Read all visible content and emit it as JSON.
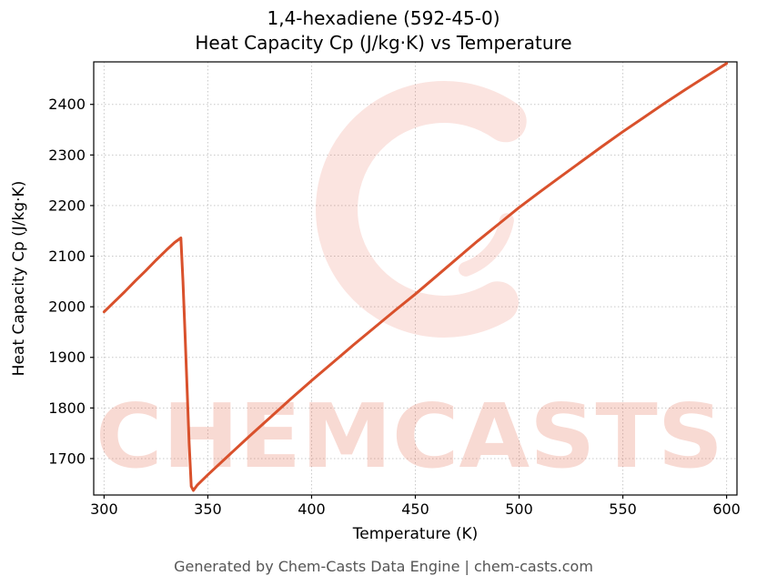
{
  "title": {
    "line1": "1,4-hexadiene (592-45-0)",
    "line2": "Heat Capacity Cp (J/kg·K) vs Temperature"
  },
  "watermark": {
    "text": "CHEMCASTS",
    "color": "#e4593c"
  },
  "footer": "Generated by Chem-Casts Data Engine | chem-casts.com",
  "chart_data": {
    "type": "line",
    "title": "1,4-hexadiene (592-45-0) Heat Capacity Cp (J/kg·K) vs Temperature",
    "xlabel": "Temperature (K)",
    "ylabel": "Heat Capacity Cp (J/kg·K)",
    "xlim": [
      295,
      605
    ],
    "ylim": [
      1628,
      2484
    ],
    "x_ticks": [
      300,
      350,
      400,
      450,
      500,
      550,
      600
    ],
    "y_ticks": [
      1700,
      1800,
      1900,
      2000,
      2100,
      2200,
      2300,
      2400
    ],
    "grid": true,
    "legend_position": "none",
    "line_color": "#d9512c",
    "series": [
      {
        "name": "Heat Capacity Cp",
        "x": [
          300,
          305,
          310,
          315,
          320,
          325,
          330,
          334,
          337,
          338,
          339,
          340,
          341,
          342,
          343,
          345,
          350,
          360,
          370,
          380,
          390,
          400,
          410,
          420,
          430,
          440,
          450,
          460,
          470,
          480,
          490,
          500,
          510,
          520,
          530,
          540,
          550,
          560,
          570,
          580,
          590,
          600
        ],
        "y": [
          1990,
          2010,
          2030,
          2051,
          2071,
          2092,
          2112,
          2127,
          2136,
          2050,
          1950,
          1840,
          1730,
          1645,
          1637,
          1648,
          1668,
          1706,
          1744,
          1781,
          1818,
          1854,
          1889,
          1924,
          1958,
          1992,
          2025,
          2060,
          2095,
          2130,
          2163,
          2196,
          2227,
          2257,
          2287,
          2317,
          2346,
          2374,
          2402,
          2429,
          2455,
          2481
        ]
      }
    ]
  }
}
